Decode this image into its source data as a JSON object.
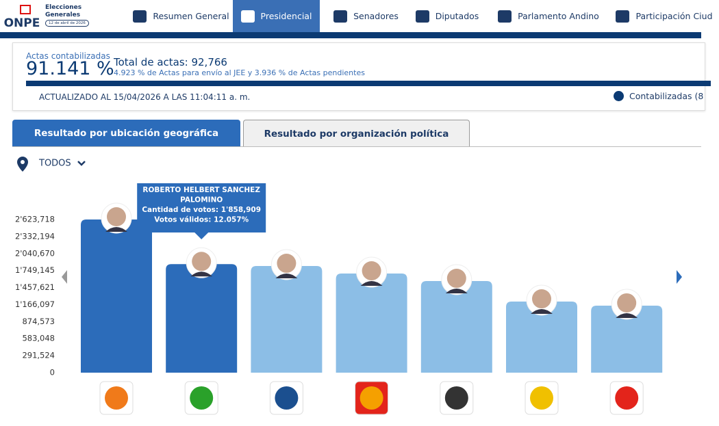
{
  "header": {
    "logo": "ONPE",
    "event": "Elecciones Generales",
    "date": "12 de abril de 2026"
  },
  "nav": {
    "items": [
      "Resumen General",
      "Presidencial",
      "Senadores",
      "Diputados",
      "Parlamento Andino",
      "Participación Ciud"
    ],
    "active": 1
  },
  "summary": {
    "counted_label": "Actas contabilizadas",
    "counted_value": "91.141 %",
    "total": "Total de actas: 92,766",
    "detail": "4.923 % de Actas para envío al JEE y 3.936 % de Actas pendientes",
    "updated": "ACTUALIZADO AL 15/04/2026 A LAS 11:04:11 a. m.",
    "legend": "Contabilizadas (8"
  },
  "tabs": {
    "items": [
      "Resultado por ubicación geográfica",
      "Resultado por organización política"
    ],
    "active": 0
  },
  "filter": {
    "label": "TODOS"
  },
  "chart_data": {
    "type": "bar",
    "categories": [
      null,
      null,
      null,
      null,
      null,
      null,
      null
    ],
    "values": [
      2623718,
      1858909,
      1827000,
      1698000,
      1569500,
      1218000,
      1148000
    ],
    "colors": [
      "#2c6cba",
      "#2c6cba",
      "#8cbee6",
      "#8cbee6",
      "#8cbee6",
      "#8cbee6",
      "#8cbee6"
    ],
    "ylim": [
      0,
      2623718
    ],
    "yticks": [
      0,
      {
        "value": 291524,
        "label": "291,524"
      },
      {
        "value": 583048,
        "label": "583,048"
      },
      {
        "value": 874573,
        "label": "874,573"
      },
      {
        "value": 1166097,
        "label": "1'166,097"
      },
      {
        "value": 1457621,
        "label": "1'457,621"
      },
      {
        "value": 1749145,
        "label": "1'749,145"
      },
      {
        "value": 2040670,
        "label": "2'040,670"
      },
      {
        "value": 2332194,
        "label": "2'332,194"
      },
      {
        "value": 2623718,
        "label": "2'623,718"
      }
    ],
    "grid": false,
    "tooltip": {
      "index": 1,
      "lines": [
        "ROBERTO HELBERT SANCHEZ",
        "PALOMINO",
        "Cantidad de votos: 1'858,909",
        "Votos válidos: 12.057%"
      ]
    }
  }
}
